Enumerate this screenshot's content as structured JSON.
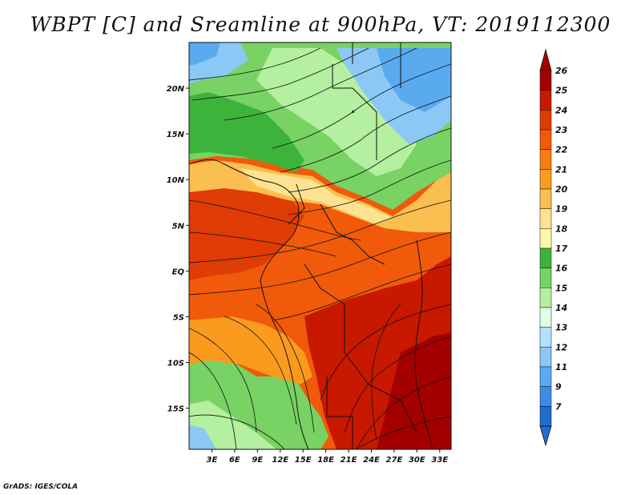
{
  "title": "WBPT [C] and Sreamline at 900hPa, VT: 2019112300",
  "credit": "GrADS: IGES/COLA",
  "map": {
    "lat_ticks": [
      {
        "label": "20N",
        "lat": 20
      },
      {
        "label": "15N",
        "lat": 15
      },
      {
        "label": "10N",
        "lat": 10
      },
      {
        "label": "5N",
        "lat": 5
      },
      {
        "label": "EQ",
        "lat": 0
      },
      {
        "label": "5S",
        "lat": -5
      },
      {
        "label": "10S",
        "lat": -10
      },
      {
        "label": "15S",
        "lat": -15
      }
    ],
    "lon_ticks": [
      {
        "label": "3E",
        "lon": 3
      },
      {
        "label": "6E",
        "lon": 6
      },
      {
        "label": "9E",
        "lon": 9
      },
      {
        "label": "12E",
        "lon": 12
      },
      {
        "label": "15E",
        "lon": 15
      },
      {
        "label": "18E",
        "lon": 18
      },
      {
        "label": "21E",
        "lon": 21
      },
      {
        "label": "24E",
        "lon": 24
      },
      {
        "label": "27E",
        "lon": 27
      },
      {
        "label": "30E",
        "lon": 30
      },
      {
        "label": "33E",
        "lon": 33
      }
    ],
    "lat_range": [
      -19.5,
      25
    ],
    "lon_range": [
      0,
      34.5
    ]
  },
  "colorbar": {
    "levels": [
      {
        "label": "26",
        "color": "#a50000"
      },
      {
        "label": "25",
        "color": "#c81800"
      },
      {
        "label": "24",
        "color": "#e03c05"
      },
      {
        "label": "23",
        "color": "#f05a0a"
      },
      {
        "label": "22",
        "color": "#f57d14"
      },
      {
        "label": "21",
        "color": "#fa9b1e"
      },
      {
        "label": "20",
        "color": "#fbbe50"
      },
      {
        "label": "19",
        "color": "#fde391"
      },
      {
        "label": "18",
        "color": "#fdf7b4"
      },
      {
        "label": "17",
        "color": "#3cb43c"
      },
      {
        "label": "16",
        "color": "#78d264"
      },
      {
        "label": "15",
        "color": "#b4f0a0"
      },
      {
        "label": "14",
        "color": "#e1ffe6"
      },
      {
        "label": "13",
        "color": "#b4e1ff"
      },
      {
        "label": "12",
        "color": "#8cc8f5"
      },
      {
        "label": "11",
        "color": "#5aaaf0"
      },
      {
        "label": "9",
        "color": "#3c8ce6"
      },
      {
        "label": "7",
        "color": "#1e6ed2"
      }
    ],
    "under_color": "#1e6ed2",
    "over_color": "#a50000"
  }
}
